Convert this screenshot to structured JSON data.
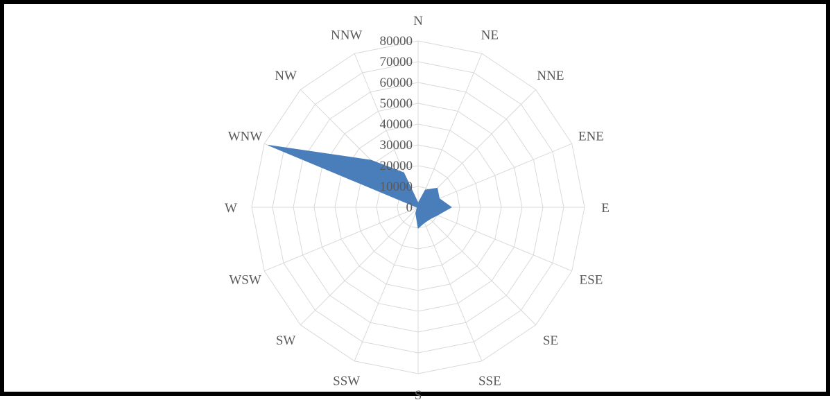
{
  "chart_data": {
    "type": "radar",
    "title": "",
    "categories": [
      "N",
      "NE",
      "NNE",
      "ENE",
      "E",
      "ESE",
      "SE",
      "SSE",
      "S",
      "SSW",
      "SW",
      "WSW",
      "W",
      "WNW",
      "NW",
      "NNW"
    ],
    "series": [
      {
        "values": [
          2000,
          9000,
          13000,
          11000,
          16000,
          10000,
          8000,
          8000,
          10000,
          3000,
          800,
          500,
          500,
          78000,
          32000,
          18000
        ],
        "color": "#4a7ebb"
      }
    ],
    "radial_ticks": [
      "0",
      "10000",
      "20000",
      "30000",
      "40000",
      "50000",
      "60000",
      "70000",
      "80000"
    ],
    "rmin": 0,
    "rmax": 80000,
    "grid": true,
    "legend": "none"
  }
}
